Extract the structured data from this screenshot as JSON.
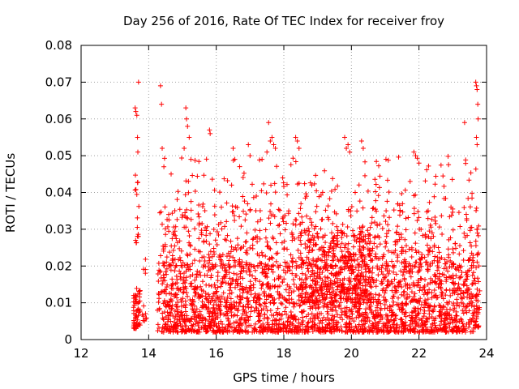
{
  "chart_data": {
    "type": "scatter",
    "title": "Day 256 of 2016, Rate Of TEC Index for receiver froy",
    "xlabel": "GPS time / hours",
    "ylabel": "ROTI / TECUs",
    "xlim": [
      12,
      24
    ],
    "ylim": [
      0,
      0.08
    ],
    "xticks": [
      12,
      14,
      16,
      18,
      20,
      22,
      24
    ],
    "xtick_labels": [
      "12",
      "14",
      "16",
      "18",
      "20",
      "22",
      "24"
    ],
    "yticks": [
      0,
      0.01,
      0.02,
      0.03,
      0.04,
      0.05,
      0.06,
      0.07,
      0.08
    ],
    "ytick_labels": [
      "0",
      "0.01",
      "0.02",
      "0.03",
      "0.04",
      "0.05",
      "0.06",
      "0.07",
      "0.08"
    ],
    "grid": true,
    "marker": "+",
    "color": "#ff0000",
    "series": [
      {
        "name": "ROTI",
        "clusters": [
          {
            "x_range": [
              13.55,
              13.75
            ],
            "y_range": [
              0.003,
              0.014
            ],
            "count": 60
          },
          {
            "x_range": [
              13.6,
              13.72
            ],
            "y_range": [
              0.026,
              0.046
            ],
            "count": 15
          },
          {
            "x_range": [
              13.8,
              13.95
            ],
            "y_range": [
              0.005,
              0.023
            ],
            "count": 12
          },
          {
            "x_range": [
              14.25,
              23.8
            ],
            "y_range": [
              0.002,
              0.02
            ],
            "count": 2200
          },
          {
            "x_range": [
              14.3,
              23.8
            ],
            "y_range": [
              0.02,
              0.035
            ],
            "count": 650
          },
          {
            "x_range": [
              14.3,
              23.8
            ],
            "y_range": [
              0.035,
              0.05
            ],
            "count": 170
          },
          {
            "x_range": [
              18.5,
              20.6
            ],
            "y_range": [
              0.01,
              0.03
            ],
            "count": 300
          }
        ],
        "points": [
          [
            13.6,
            0.063
          ],
          [
            13.62,
            0.062
          ],
          [
            13.65,
            0.061
          ],
          [
            13.7,
            0.07
          ],
          [
            13.67,
            0.055
          ],
          [
            13.68,
            0.051
          ],
          [
            14.35,
            0.069
          ],
          [
            14.38,
            0.064
          ],
          [
            14.4,
            0.052
          ],
          [
            14.45,
            0.047
          ],
          [
            15.1,
            0.063
          ],
          [
            15.12,
            0.06
          ],
          [
            15.15,
            0.058
          ],
          [
            15.2,
            0.055
          ],
          [
            15.05,
            0.052
          ],
          [
            15.25,
            0.049
          ],
          [
            15.8,
            0.057
          ],
          [
            15.82,
            0.056
          ],
          [
            16.5,
            0.052
          ],
          [
            16.55,
            0.049
          ],
          [
            16.95,
            0.053
          ],
          [
            17.0,
            0.05
          ],
          [
            17.55,
            0.059
          ],
          [
            17.6,
            0.054
          ],
          [
            17.65,
            0.055
          ],
          [
            17.7,
            0.053
          ],
          [
            17.75,
            0.052
          ],
          [
            17.5,
            0.051
          ],
          [
            18.35,
            0.055
          ],
          [
            18.4,
            0.054
          ],
          [
            18.45,
            0.052
          ],
          [
            19.8,
            0.055
          ],
          [
            19.85,
            0.052
          ],
          [
            19.9,
            0.053
          ],
          [
            19.95,
            0.051
          ],
          [
            20.3,
            0.054
          ],
          [
            20.35,
            0.052
          ],
          [
            21.85,
            0.051
          ],
          [
            21.9,
            0.05
          ],
          [
            22.0,
            0.048
          ],
          [
            23.35,
            0.059
          ],
          [
            23.68,
            0.07
          ],
          [
            23.7,
            0.069
          ],
          [
            23.72,
            0.068
          ],
          [
            23.74,
            0.064
          ],
          [
            23.75,
            0.06
          ],
          [
            23.7,
            0.055
          ],
          [
            23.72,
            0.053
          ]
        ]
      }
    ]
  }
}
